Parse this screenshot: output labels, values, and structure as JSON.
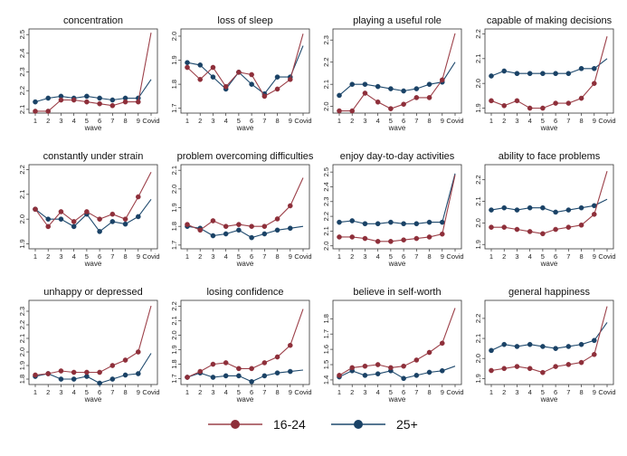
{
  "colors": {
    "young": "#9c4049",
    "old": "#1f4a6e",
    "young_marker": "#8e2f3a",
    "old_marker": "#1a4266"
  },
  "legend": {
    "young": "16-24",
    "old": "25+"
  },
  "chart_data": [
    {
      "type": "line",
      "title": "concentration",
      "xlabel": "wave",
      "categories": [
        "1",
        "2",
        "3",
        "4",
        "5",
        "6",
        "7",
        "8",
        "9",
        "Covid"
      ],
      "yticks": [
        "2.1",
        "2.2",
        "2.3",
        "2.4",
        "2.5"
      ],
      "ylim": [
        2.08,
        2.53
      ],
      "series": [
        {
          "name": "16-24",
          "values": [
            2.09,
            2.09,
            2.15,
            2.15,
            2.14,
            2.13,
            2.12,
            2.14,
            2.14,
            2.51
          ]
        },
        {
          "name": "25+",
          "values": [
            2.14,
            2.16,
            2.17,
            2.16,
            2.17,
            2.16,
            2.15,
            2.16,
            2.16,
            2.26
          ]
        }
      ]
    },
    {
      "type": "line",
      "title": "loss of sleep",
      "xlabel": "wave",
      "categories": [
        "1",
        "2",
        "3",
        "4",
        "5",
        "6",
        "7",
        "8",
        "9",
        "Covid"
      ],
      "yticks": [
        "1.7",
        "1.8",
        "1.9",
        "2.0"
      ],
      "ylim": [
        1.68,
        2.03
      ],
      "series": [
        {
          "name": "16-24",
          "values": [
            1.87,
            1.82,
            1.87,
            1.79,
            1.85,
            1.84,
            1.75,
            1.78,
            1.82,
            2.01
          ]
        },
        {
          "name": "25+",
          "values": [
            1.89,
            1.88,
            1.83,
            1.78,
            1.85,
            1.8,
            1.76,
            1.83,
            1.83,
            1.96
          ]
        }
      ]
    },
    {
      "type": "line",
      "title": "playing a useful role",
      "xlabel": "wave",
      "categories": [
        "1",
        "2",
        "3",
        "4",
        "5",
        "6",
        "7",
        "8",
        "9",
        "Covid"
      ],
      "yticks": [
        "2.0",
        "2.1",
        "2.2",
        "2.3"
      ],
      "ylim": [
        1.97,
        2.35
      ],
      "series": [
        {
          "name": "16-24",
          "values": [
            1.98,
            1.98,
            2.06,
            2.02,
            1.99,
            2.01,
            2.04,
            2.04,
            2.12,
            2.33
          ]
        },
        {
          "name": "25+",
          "values": [
            2.05,
            2.1,
            2.1,
            2.09,
            2.08,
            2.07,
            2.08,
            2.1,
            2.11,
            2.2
          ]
        }
      ]
    },
    {
      "type": "line",
      "title": "capable of making decisions",
      "xlabel": "wave",
      "categories": [
        "1",
        "2",
        "3",
        "4",
        "5",
        "6",
        "7",
        "8",
        "9",
        "Covid"
      ],
      "yticks": [
        "1.9",
        "2.0",
        "2.1",
        "2.2"
      ],
      "ylim": [
        1.88,
        2.22
      ],
      "series": [
        {
          "name": "16-24",
          "values": [
            1.93,
            1.91,
            1.93,
            1.9,
            1.9,
            1.92,
            1.92,
            1.94,
            2.0,
            2.19
          ]
        },
        {
          "name": "25+",
          "values": [
            2.03,
            2.05,
            2.04,
            2.04,
            2.04,
            2.04,
            2.04,
            2.06,
            2.06,
            2.1
          ]
        }
      ]
    },
    {
      "type": "line",
      "title": "constantly under strain",
      "xlabel": "wave",
      "categories": [
        "1",
        "2",
        "3",
        "4",
        "5",
        "6",
        "7",
        "8",
        "9",
        "Covid"
      ],
      "yticks": [
        "1.9",
        "2.0",
        "2.1",
        "2.2"
      ],
      "ylim": [
        1.88,
        2.22
      ],
      "series": [
        {
          "name": "16-24",
          "values": [
            2.04,
            1.97,
            2.03,
            1.99,
            2.03,
            2.0,
            2.02,
            2.0,
            2.09,
            2.19
          ]
        },
        {
          "name": "25+",
          "values": [
            2.04,
            2.0,
            2.0,
            1.97,
            2.02,
            1.95,
            1.99,
            1.98,
            2.01,
            2.08
          ]
        }
      ]
    },
    {
      "type": "line",
      "title": "problem overcoming difficulties",
      "xlabel": "wave",
      "categories": [
        "1",
        "2",
        "3",
        "4",
        "5",
        "6",
        "7",
        "8",
        "9",
        "Covid"
      ],
      "yticks": [
        "1.7",
        "1.8",
        "1.9",
        "2.0",
        "2.1"
      ],
      "ylim": [
        1.68,
        2.13
      ],
      "series": [
        {
          "name": "16-24",
          "values": [
            1.81,
            1.78,
            1.83,
            1.8,
            1.81,
            1.8,
            1.8,
            1.84,
            1.91,
            2.06
          ]
        },
        {
          "name": "25+",
          "values": [
            1.8,
            1.79,
            1.75,
            1.76,
            1.78,
            1.74,
            1.76,
            1.78,
            1.79,
            1.8
          ]
        }
      ]
    },
    {
      "type": "line",
      "title": "enjoy day-to-day activities",
      "xlabel": "wave",
      "categories": [
        "1",
        "2",
        "3",
        "4",
        "5",
        "6",
        "7",
        "8",
        "9",
        "Covid"
      ],
      "yticks": [
        "2.0",
        "2.1",
        "2.2",
        "2.3",
        "2.4",
        "2.5"
      ],
      "ylim": [
        1.98,
        2.55
      ],
      "series": [
        {
          "name": "16-24",
          "values": [
            2.06,
            2.06,
            2.05,
            2.03,
            2.03,
            2.04,
            2.05,
            2.06,
            2.08,
            2.48
          ]
        },
        {
          "name": "25+",
          "values": [
            2.16,
            2.17,
            2.15,
            2.15,
            2.16,
            2.15,
            2.15,
            2.16,
            2.16,
            2.49
          ]
        }
      ]
    },
    {
      "type": "line",
      "title": "ability to face problems",
      "xlabel": "wave",
      "categories": [
        "1",
        "2",
        "3",
        "4",
        "5",
        "6",
        "7",
        "8",
        "9",
        "Covid"
      ],
      "yticks": [
        "1.9",
        "2.0",
        "2.1",
        "2.2"
      ],
      "ylim": [
        1.88,
        2.27
      ],
      "series": [
        {
          "name": "16-24",
          "values": [
            1.98,
            1.98,
            1.97,
            1.96,
            1.95,
            1.97,
            1.98,
            1.99,
            2.04,
            2.24
          ]
        },
        {
          "name": "25+",
          "values": [
            2.06,
            2.07,
            2.06,
            2.07,
            2.07,
            2.05,
            2.06,
            2.07,
            2.08,
            2.11
          ]
        }
      ]
    },
    {
      "type": "line",
      "title": "unhappy or depressed",
      "xlabel": "wave",
      "categories": [
        "1",
        "2",
        "3",
        "4",
        "5",
        "6",
        "7",
        "8",
        "9",
        "Covid"
      ],
      "yticks": [
        "1.8",
        "1.9",
        "2.0",
        "2.1",
        "2.2",
        "2.3"
      ],
      "ylim": [
        1.76,
        2.38
      ],
      "series": [
        {
          "name": "16-24",
          "values": [
            1.83,
            1.84,
            1.86,
            1.85,
            1.85,
            1.85,
            1.9,
            1.94,
            2.0,
            2.34
          ]
        },
        {
          "name": "25+",
          "values": [
            1.82,
            1.84,
            1.8,
            1.8,
            1.82,
            1.77,
            1.8,
            1.83,
            1.84,
            1.99
          ]
        }
      ]
    },
    {
      "type": "line",
      "title": "losing confidence",
      "xlabel": "wave",
      "categories": [
        "1",
        "2",
        "3",
        "4",
        "5",
        "6",
        "7",
        "8",
        "9",
        "Covid"
      ],
      "yticks": [
        "1.7",
        "1.8",
        "1.9",
        "2.0",
        "2.1",
        "2.2"
      ],
      "ylim": [
        1.66,
        2.24
      ],
      "series": [
        {
          "name": "16-24",
          "values": [
            1.71,
            1.75,
            1.8,
            1.81,
            1.77,
            1.77,
            1.81,
            1.85,
            1.93,
            2.18
          ]
        },
        {
          "name": "25+",
          "values": [
            1.71,
            1.74,
            1.71,
            1.72,
            1.72,
            1.68,
            1.72,
            1.74,
            1.75,
            1.76
          ]
        }
      ]
    },
    {
      "type": "line",
      "title": "believe in self-worth",
      "xlabel": "wave",
      "categories": [
        "1",
        "2",
        "3",
        "4",
        "5",
        "6",
        "7",
        "8",
        "9",
        "Covid"
      ],
      "yticks": [
        "1.4",
        "1.5",
        "1.6",
        "1.7",
        "1.8"
      ],
      "ylim": [
        1.37,
        1.92
      ],
      "series": [
        {
          "name": "16-24",
          "values": [
            1.43,
            1.48,
            1.49,
            1.5,
            1.48,
            1.49,
            1.53,
            1.58,
            1.64,
            1.87
          ]
        },
        {
          "name": "25+",
          "values": [
            1.42,
            1.46,
            1.43,
            1.44,
            1.46,
            1.41,
            1.43,
            1.45,
            1.46,
            1.49
          ]
        }
      ]
    },
    {
      "type": "line",
      "title": "general happiness",
      "xlabel": "wave",
      "categories": [
        "1",
        "2",
        "3",
        "4",
        "5",
        "6",
        "7",
        "8",
        "9",
        "Covid"
      ],
      "yticks": [
        "1.9",
        "2.0",
        "2.1",
        "2.2"
      ],
      "ylim": [
        1.87,
        2.29
      ],
      "series": [
        {
          "name": "16-24",
          "values": [
            1.94,
            1.95,
            1.96,
            1.95,
            1.93,
            1.96,
            1.97,
            1.98,
            2.02,
            2.26
          ]
        },
        {
          "name": "25+",
          "values": [
            2.04,
            2.07,
            2.06,
            2.07,
            2.06,
            2.05,
            2.06,
            2.07,
            2.09,
            2.18
          ]
        }
      ]
    }
  ]
}
